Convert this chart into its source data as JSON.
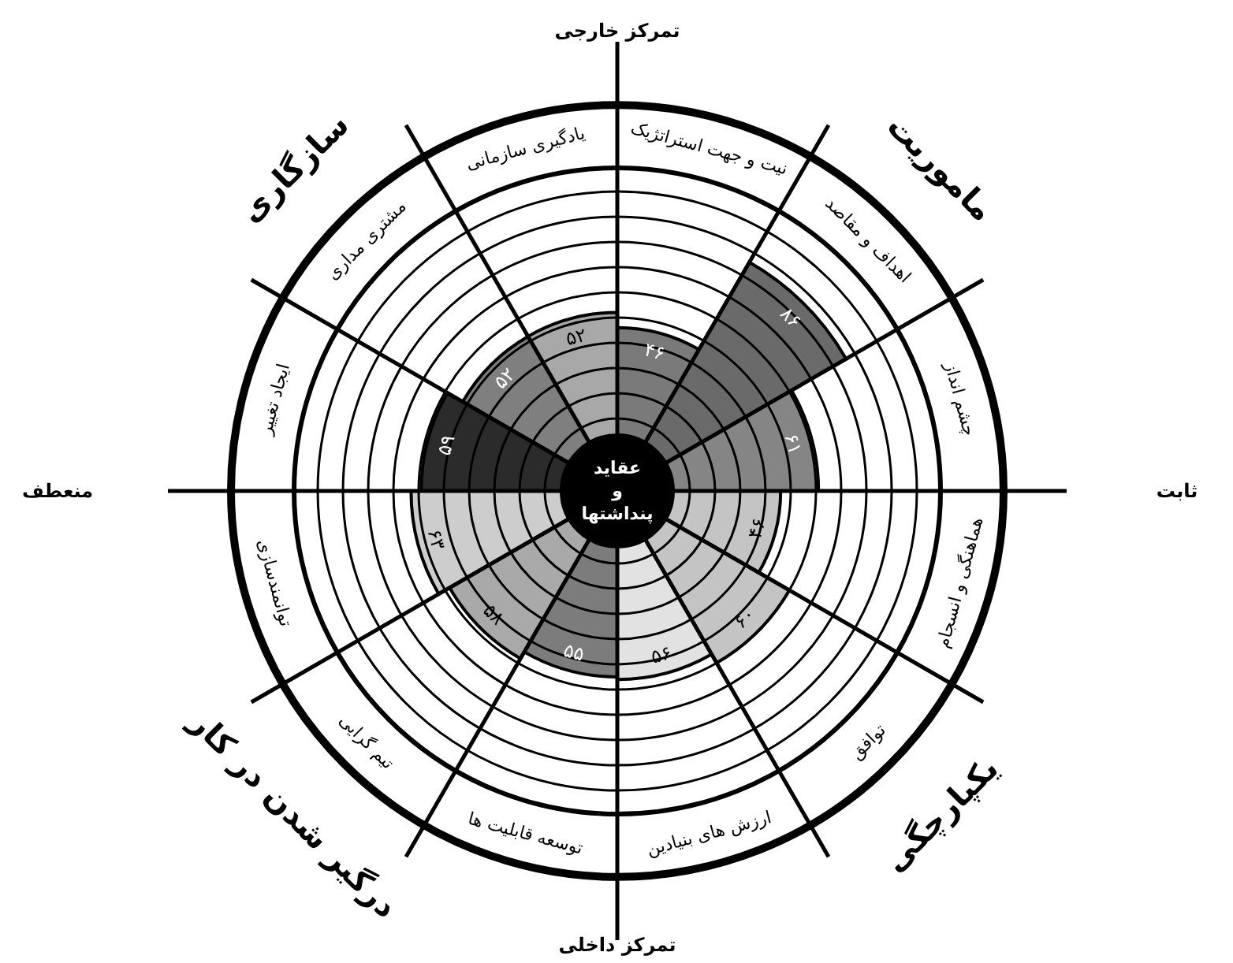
{
  "chart_data": {
    "type": "other",
    "categories": [
      "نیت و جهت استراتژیک",
      "اهداف و مقاصد",
      "چشم انداز",
      "هماهنگی و انسجام",
      "توافق",
      "ارزش های بنیادین",
      "توسعه قابلیت ها",
      "تیم گرایی",
      "توانمندسازی",
      "ایجاد تغییر",
      "مشتری مداری",
      "یادگیری سازمانی"
    ],
    "values": [
      46,
      86,
      61,
      46,
      60,
      56,
      55,
      58,
      63,
      59,
      52,
      52
    ],
    "value_labels": [
      "۴۶",
      "۸۶",
      "۶۱",
      "۴۶",
      "۶۰",
      "۵۶",
      "۵۵",
      "۵۸",
      "۶۳",
      "۵۹",
      "۵۲",
      "۵۲"
    ],
    "colors": [
      "#7a7a7a",
      "#6a6a6a",
      "#858585",
      "#c4c4c4",
      "#c4c4c4",
      "#e2e2e2",
      "#7c7c7c",
      "#a9a9a9",
      "#cdcdcd",
      "#2b2b2b",
      "#7f7f7f",
      "#a8a8a8"
    ],
    "annotations": [
      "تمرکز خارجی",
      "ثابت",
      "تمرکز داخلی",
      "منعطف",
      "ماموریت",
      "یکپارچگی",
      "درگیر شدن در کار",
      "سازگاری",
      "عقاید\nو\nپنداشتها"
    ]
  }
}
